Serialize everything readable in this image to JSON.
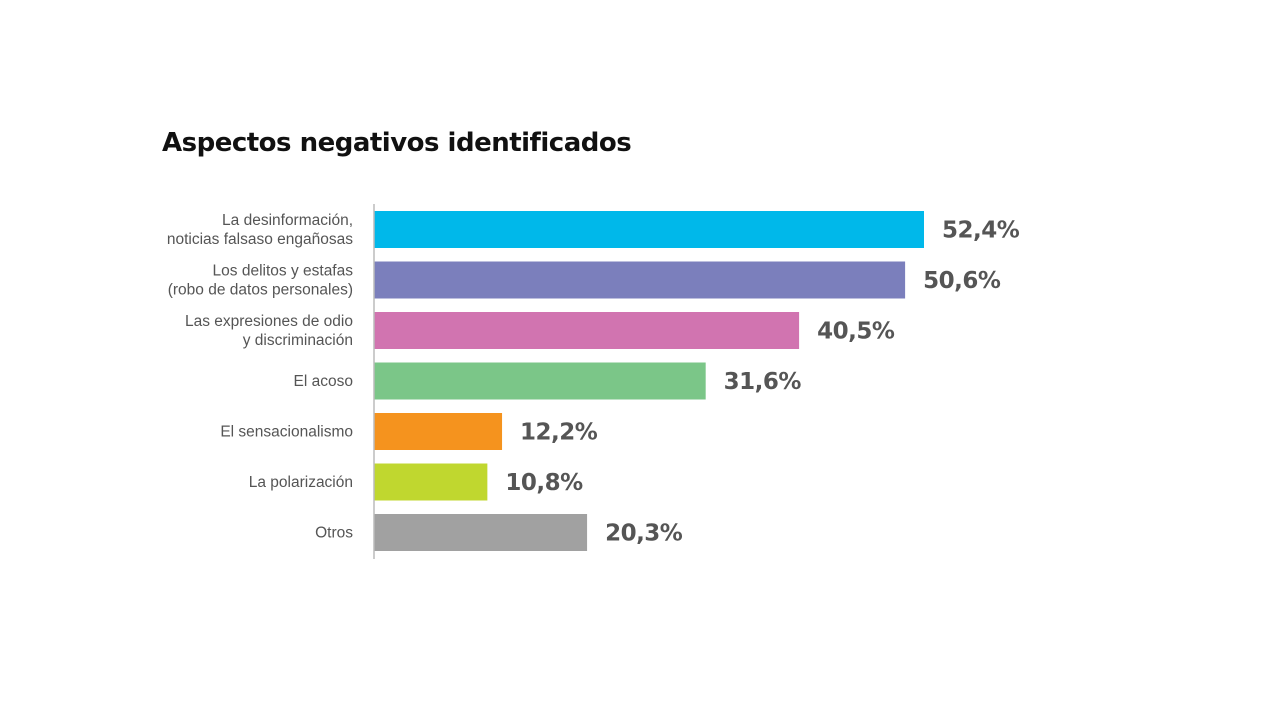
{
  "chart_data": {
    "type": "bar",
    "orientation": "horizontal",
    "title": "Aspectos negativos identificados",
    "categories": [
      [
        "La desinformación,",
        "noticias falsaso engañosas"
      ],
      [
        "Los delitos y estafas",
        "(robo de datos personales)"
      ],
      [
        "Las expresiones de odio",
        "y discriminación"
      ],
      [
        "El acoso"
      ],
      [
        "El sensacionalismo"
      ],
      [
        "La polarización"
      ],
      [
        "Otros"
      ]
    ],
    "values": [
      52.4,
      50.6,
      40.5,
      31.6,
      12.2,
      10.8,
      20.3
    ],
    "value_labels": [
      "52,4%",
      "50,6%",
      "40,5%",
      "31,6%",
      "12,2%",
      "10,8%",
      "20,3%"
    ],
    "colors": [
      "#00b8ea",
      "#7b7fbc",
      "#d174b0",
      "#7bc688",
      "#f5931e",
      "#c0d72f",
      "#a1a1a1"
    ],
    "unit": "%",
    "xlim": [
      0,
      52.4
    ],
    "grid": false,
    "legend": "none"
  }
}
